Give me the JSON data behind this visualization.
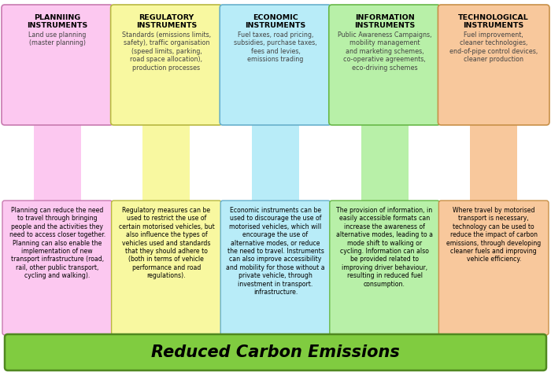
{
  "columns": [
    {
      "title": "PLANNIING\nINSTRUMENTS",
      "subtitle": "Land use planning\n(master planning)",
      "body": "Planning can reduce the need\nto travel through bringing\npeople and the activities they\nneed to access closer together.\nPlanning can also enable the\nimplementation of new\ntransport infrastructure (road,\nrail, other public transport,\ncycling and walking).",
      "color": "#fcc8f0",
      "border_color": "#c87ab0"
    },
    {
      "title": "REGULATORY\nINSTRUMENTS",
      "subtitle": "Standards (emissions limits,\nsafety), traffic organisation\n(speed limits, parking,\nroad space allocation),\nproduction processes",
      "body": "Regulatory measures can be\nused to restrict the use of\ncertain motorised vehicles, but\nalso influence the types of\nvehicles used and standards\nthat they should adhere to\n(both in terms of vehicle\nperformance and road\nregulations).",
      "color": "#f8f8a0",
      "border_color": "#b8b840"
    },
    {
      "title": "ECONOMIC\nINSTRUMENTS",
      "subtitle": "Fuel taxes, road pricing,\nsubsidies, purchase taxes,\nfees and levies,\nemissions trading",
      "body": "Economic instruments can be\nused to discourage the use of\nmotorised vehicles, which will\nencourage the use of\nalternative modes, or reduce\nthe need to travel. Instruments\ncan also improve accessibility\nand mobility for those without a\nprivate vehicle, through\ninvestment in transport.\ninfrastructure.",
      "color": "#b8ecf8",
      "border_color": "#68b0cc"
    },
    {
      "title": "INFORMATION\nINSTRUMENTS",
      "subtitle": "Public Awareness Campaigns,\nmobility management\nand marketing schemes,\nco-operative agreements,\neco-driving schemes",
      "body": "The provision of information, in\neasily accessible formats can\nincrease the awareness of\nalternative modes, leading to a\nmode shift to walking or\ncycling. Information can also\nbe provided related to\nimproving driver behaviour,\nresulting in reduced fuel\nconsumption.",
      "color": "#b8f0a8",
      "border_color": "#68b848"
    },
    {
      "title": "TECHNOLOGICAL\nINSTRUMENTS",
      "subtitle": "Fuel improvement,\ncleaner technologies,\nend-of-pipe control devices,\ncleaner production",
      "body": "Where travel by motorised\ntransport is necessary,\ntechnology can be used to\nreduce the impact of carbon\nemissions, through developing\ncleaner fuels and improving\nvehicle efficiency.",
      "color": "#f8c89c",
      "border_color": "#c89048"
    }
  ],
  "bottom_label": "Reduced Carbon Emissions",
  "bottom_bg": "#80cc40",
  "bottom_border": "#508820",
  "bg_color": "#ffffff",
  "title_fontsize": 6.8,
  "subtitle_fontsize": 5.8,
  "body_fontsize": 5.6
}
